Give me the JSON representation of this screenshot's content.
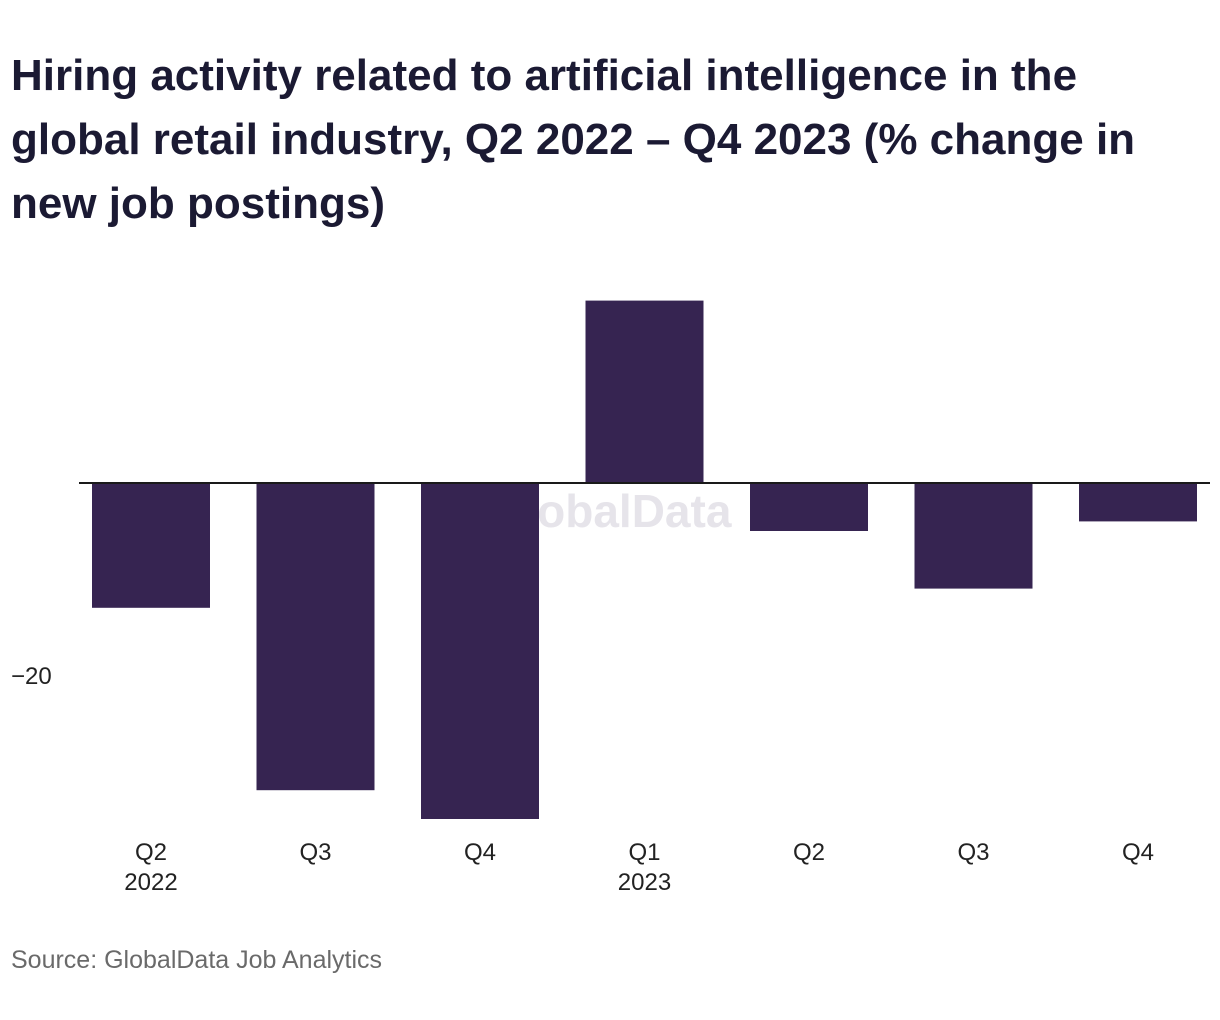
{
  "title": "Hiring activity related to artificial intelligence in the global retail industry, Q2 2022 – Q4 2023 (% change in new job postings)",
  "source": "Source: GlobalData Job Analytics",
  "watermark": "GlobalData",
  "colors": {
    "bar": "#362451",
    "axis": "#1a1a1a",
    "text": "#1b1a33",
    "tick_text": "#222222",
    "watermark": "#e6e4ea",
    "source_text": "#6a6a6a"
  },
  "chart_data": {
    "type": "bar",
    "title": "Hiring activity related to artificial intelligence in the global retail industry, Q2 2022 – Q4 2023 (% change in new job postings)",
    "xlabel": "",
    "ylabel": "",
    "categories": [
      "Q2",
      "Q3",
      "Q4",
      "Q1",
      "Q2",
      "Q3",
      "Q4"
    ],
    "category_groups": [
      "2022",
      "",
      "",
      "2023",
      "",
      "",
      ""
    ],
    "values": [
      -13,
      -32,
      -35,
      19,
      -5,
      -11,
      -4
    ],
    "ylim": [
      -37,
      20
    ],
    "y_ticks": [
      -20
    ],
    "y_tick_labels": [
      "−20"
    ],
    "grid": false,
    "legend": "none"
  }
}
